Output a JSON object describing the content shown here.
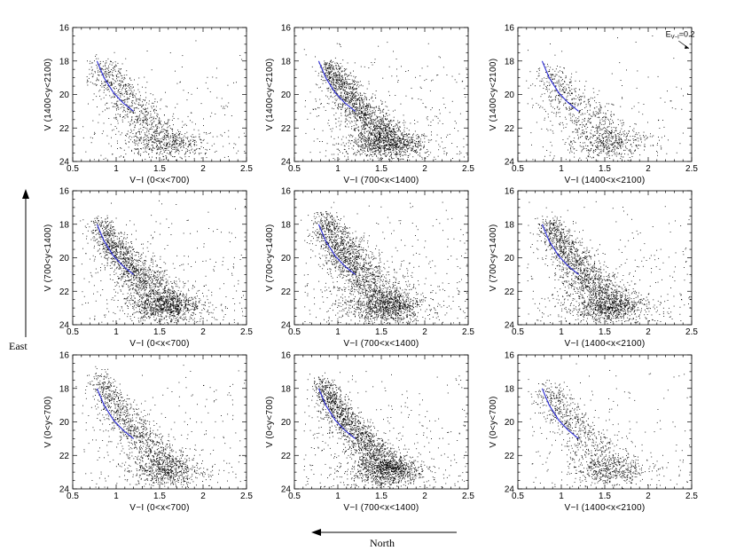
{
  "colors": {
    "points": "#000000",
    "isochrone": "#2a2ad6",
    "frame": "#000000"
  },
  "direction_labels": {
    "east": "East",
    "north": "North"
  },
  "chart_data": [
    {
      "type": "scatter",
      "panel": "top-left",
      "xlabel": "V−I (0<x<700)",
      "ylabel": "V (1400<y<2100)",
      "xlim": [
        0.5,
        2.5
      ],
      "ylim": [
        24,
        16
      ],
      "xticks": [
        "0.5",
        "1",
        "1.5",
        "2",
        "2.5"
      ],
      "yticks": [
        "16",
        "18",
        "20",
        "22",
        "24"
      ],
      "density": 0.55,
      "ms_start": [
        0.83,
        17.9
      ],
      "turnoff_spread": 0.16,
      "isochrone": [
        [
          0.78,
          18.0
        ],
        [
          0.86,
          19.0
        ],
        [
          0.97,
          19.9
        ],
        [
          1.08,
          20.5
        ],
        [
          1.2,
          21.0
        ]
      ]
    },
    {
      "type": "scatter",
      "panel": "top-center",
      "xlabel": "V−I (700<x<1400)",
      "ylabel": "V (1400<y<2100)",
      "xlim": [
        0.5,
        2.5
      ],
      "ylim": [
        24,
        16
      ],
      "xticks": [
        "0.5",
        "1",
        "1.5",
        "2",
        "2.5"
      ],
      "yticks": [
        "16",
        "18",
        "20",
        "22",
        "24"
      ],
      "density": 1.0,
      "ms_start": [
        0.9,
        18.0
      ],
      "turnoff_spread": 0.12,
      "isochrone": [
        [
          0.78,
          18.0
        ],
        [
          0.86,
          19.0
        ],
        [
          0.97,
          19.9
        ],
        [
          1.08,
          20.5
        ],
        [
          1.2,
          21.0
        ]
      ]
    },
    {
      "type": "scatter",
      "panel": "top-right",
      "xlabel": "V−I (1400<x<2100)",
      "ylabel": "V (1400<y<2100)",
      "xlim": [
        0.5,
        2.5
      ],
      "ylim": [
        24,
        16
      ],
      "xticks": [
        "0.5",
        "1",
        "1.5",
        "2",
        "2.5"
      ],
      "yticks": [
        "16",
        "18",
        "20",
        "22",
        "24"
      ],
      "density": 0.45,
      "ms_start": [
        0.85,
        18.3
      ],
      "turnoff_spread": 0.18,
      "isochrone": [
        [
          0.78,
          18.0
        ],
        [
          0.86,
          19.0
        ],
        [
          0.97,
          19.9
        ],
        [
          1.08,
          20.5
        ],
        [
          1.2,
          21.0
        ]
      ],
      "annotation": {
        "text": "E",
        "subscript": "V−I",
        "suffix": "=0.2",
        "arrow": {
          "from": [
            2.35,
            16.8
          ],
          "to": [
            2.5,
            17.3
          ]
        }
      }
    },
    {
      "type": "scatter",
      "panel": "middle-left",
      "xlabel": "V−I (0<x<700)",
      "ylabel": "V (700<y<1400)",
      "xlim": [
        0.5,
        2.5
      ],
      "ylim": [
        24,
        16
      ],
      "xticks": [
        "0.5",
        "1",
        "1.5",
        "2",
        "2.5"
      ],
      "yticks": [
        "16",
        "18",
        "20",
        "22",
        "24"
      ],
      "density": 1.0,
      "ms_start": [
        0.8,
        17.6
      ],
      "turnoff_spread": 0.13,
      "isochrone": [
        [
          0.78,
          18.0
        ],
        [
          0.86,
          19.0
        ],
        [
          0.97,
          19.9
        ],
        [
          1.08,
          20.5
        ],
        [
          1.2,
          21.0
        ]
      ]
    },
    {
      "type": "scatter",
      "panel": "middle-center",
      "xlabel": "V−I (700<x<1400)",
      "ylabel": "V (700<y<1400)",
      "xlim": [
        0.5,
        2.5
      ],
      "ylim": [
        24,
        16
      ],
      "xticks": [
        "0.5",
        "1",
        "1.5",
        "2",
        "2.5"
      ],
      "yticks": [
        "16",
        "18",
        "20",
        "22",
        "24"
      ],
      "density": 1.1,
      "ms_start": [
        0.83,
        17.3
      ],
      "turnoff_spread": 0.15,
      "isochrone": [
        [
          0.78,
          18.0
        ],
        [
          0.86,
          19.0
        ],
        [
          0.97,
          19.9
        ],
        [
          1.08,
          20.5
        ],
        [
          1.2,
          21.0
        ]
      ]
    },
    {
      "type": "scatter",
      "panel": "middle-right",
      "xlabel": "V−I (1400<x<2100)",
      "ylabel": "V (700<y<1400)",
      "xlim": [
        0.5,
        2.5
      ],
      "ylim": [
        24,
        16
      ],
      "xticks": [
        "0.5",
        "1",
        "1.5",
        "2",
        "2.5"
      ],
      "yticks": [
        "16",
        "18",
        "20",
        "22",
        "24"
      ],
      "density": 0.95,
      "ms_start": [
        0.85,
        17.6
      ],
      "turnoff_spread": 0.13,
      "isochrone": [
        [
          0.78,
          18.0
        ],
        [
          0.86,
          19.0
        ],
        [
          0.97,
          19.9
        ],
        [
          1.08,
          20.5
        ],
        [
          1.2,
          21.0
        ]
      ]
    },
    {
      "type": "scatter",
      "panel": "bottom-left",
      "xlabel": "V−I (0<x<700)",
      "ylabel": "V (0<y<700)",
      "xlim": [
        0.5,
        2.5
      ],
      "ylim": [
        24,
        16
      ],
      "xticks": [
        "0.5",
        "1",
        "1.5",
        "2",
        "2.5"
      ],
      "yticks": [
        "16",
        "18",
        "20",
        "22",
        "24"
      ],
      "density": 0.7,
      "ms_start": [
        0.8,
        17.0
      ],
      "turnoff_spread": 0.12,
      "isochrone": [
        [
          0.78,
          18.0
        ],
        [
          0.86,
          19.0
        ],
        [
          0.97,
          19.9
        ],
        [
          1.08,
          20.5
        ],
        [
          1.2,
          21.0
        ]
      ]
    },
    {
      "type": "scatter",
      "panel": "bottom-center",
      "xlabel": "V−I (700<x<1400)",
      "ylabel": "V (0<y<700)",
      "xlim": [
        0.5,
        2.5
      ],
      "ylim": [
        24,
        16
      ],
      "xticks": [
        "0.5",
        "1",
        "1.5",
        "2",
        "2.5"
      ],
      "yticks": [
        "16",
        "18",
        "20",
        "22",
        "24"
      ],
      "density": 1.05,
      "ms_start": [
        0.8,
        17.4
      ],
      "turnoff_spread": 0.11,
      "isochrone": [
        [
          0.78,
          18.0
        ],
        [
          0.86,
          19.0
        ],
        [
          0.97,
          19.9
        ],
        [
          1.08,
          20.5
        ],
        [
          1.2,
          21.0
        ]
      ]
    },
    {
      "type": "scatter",
      "panel": "bottom-right",
      "xlabel": "V−I (1400<x<2100)",
      "ylabel": "V (0<y<700)",
      "xlim": [
        0.5,
        2.5
      ],
      "ylim": [
        24,
        16
      ],
      "xticks": [
        "0.5",
        "1",
        "1.5",
        "2",
        "2.5"
      ],
      "yticks": [
        "16",
        "18",
        "20",
        "22",
        "24"
      ],
      "density": 0.5,
      "ms_start": [
        0.85,
        17.6
      ],
      "turnoff_spread": 0.15,
      "isochrone": [
        [
          0.78,
          18.0
        ],
        [
          0.86,
          19.0
        ],
        [
          0.97,
          19.9
        ],
        [
          1.08,
          20.5
        ],
        [
          1.2,
          21.0
        ]
      ]
    }
  ]
}
